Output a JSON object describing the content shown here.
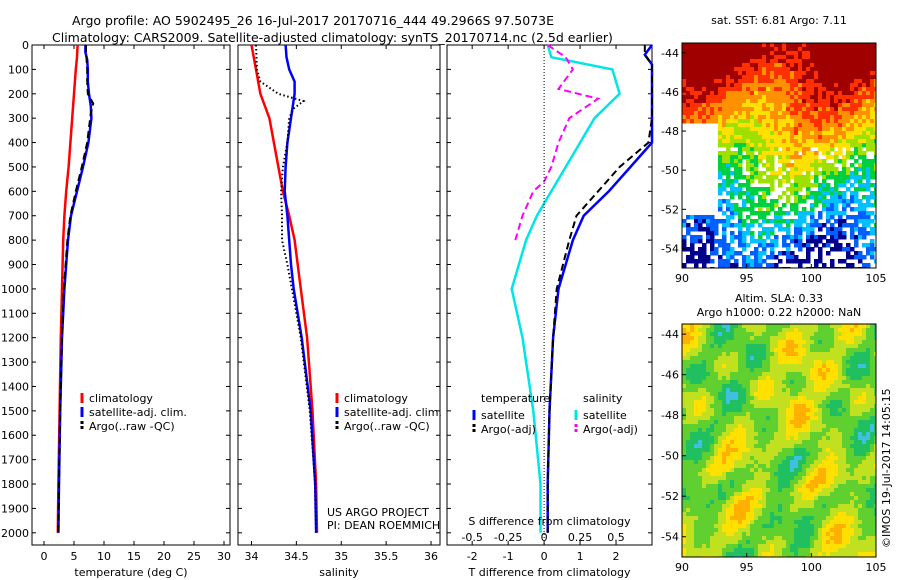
{
  "titles": {
    "line1": "Argo profile: AO 5902495_26 16-Jul-2017 20170716_444 49.2966S 97.5073E",
    "line2": "Climatology: CARS2009. Satellite-adjusted climatology: synTS_20170714.nc (2.5d earlier)"
  },
  "chart_data": [
    {
      "type": "line",
      "panel": "temperature",
      "xlabel": "temperature (deg C)",
      "ylabel": "",
      "xlim": [
        -2,
        31
      ],
      "ylim": [
        0,
        2050
      ],
      "y_inverted": true,
      "xticks": [
        0,
        5,
        10,
        15,
        20,
        25,
        30
      ],
      "yticks": [
        0,
        100,
        200,
        300,
        400,
        500,
        600,
        700,
        800,
        900,
        1000,
        1100,
        1200,
        1300,
        1400,
        1500,
        1600,
        1700,
        1800,
        1900,
        2000
      ],
      "legend": [
        "climatology",
        "satellite-adj. clim.",
        "Argo(..raw -QC)"
      ],
      "series": [
        {
          "name": "climatology",
          "color": "#ff0000",
          "style": "solid",
          "depth": [
            0,
            50,
            100,
            200,
            300,
            400,
            500,
            600,
            700,
            800,
            1000,
            1200,
            1500,
            1800,
            2000
          ],
          "values": [
            5.6,
            5.5,
            5.3,
            5.0,
            4.7,
            4.4,
            4.1,
            3.7,
            3.4,
            3.2,
            3.0,
            2.8,
            2.6,
            2.4,
            2.3
          ]
        },
        {
          "name": "satellite-adj. clim.",
          "color": "#0000ff",
          "style": "solid",
          "depth": [
            0,
            30,
            60,
            100,
            150,
            200,
            250,
            300,
            400,
            500,
            600,
            700,
            800,
            1000,
            1200,
            1500,
            1800,
            2000
          ],
          "values": [
            6.9,
            6.9,
            7.2,
            7.3,
            7.3,
            7.5,
            7.8,
            7.9,
            7.4,
            6.5,
            5.5,
            4.5,
            4.0,
            3.4,
            3.0,
            2.7,
            2.5,
            2.4
          ]
        },
        {
          "name": "Argo(..raw -QC)",
          "color": "#000000",
          "style": "dashed",
          "depth": [
            0,
            30,
            60,
            100,
            150,
            200,
            240,
            280,
            320,
            400,
            500,
            600,
            700,
            800,
            1000,
            1200,
            1500,
            1800,
            2000
          ],
          "values": [
            7.0,
            7.0,
            7.1,
            7.2,
            7.2,
            7.3,
            8.2,
            7.8,
            7.6,
            7.2,
            6.3,
            5.3,
            4.4,
            3.9,
            3.3,
            3.0,
            2.7,
            2.5,
            2.4
          ]
        }
      ]
    },
    {
      "type": "line",
      "panel": "salinity",
      "xlabel": "salinity",
      "ylabel": "",
      "xlim": [
        33.85,
        36.1
      ],
      "ylim": [
        0,
        2050
      ],
      "y_inverted": true,
      "xticks": [
        34,
        34.5,
        35,
        35.5,
        36
      ],
      "legend": [
        "climatology",
        "satellite-adj. clim.",
        "Argo(..raw -QC)"
      ],
      "series": [
        {
          "name": "climatology",
          "color": "#ff0000",
          "style": "solid",
          "depth": [
            0,
            100,
            200,
            250,
            300,
            400,
            500,
            600,
            700,
            800,
            1000,
            1200,
            1500,
            1800,
            2000
          ],
          "values": [
            34.0,
            34.05,
            34.1,
            34.15,
            34.2,
            34.25,
            34.3,
            34.35,
            34.42,
            34.48,
            34.55,
            34.62,
            34.68,
            34.72,
            34.73
          ]
        },
        {
          "name": "satellite-adj. clim.",
          "color": "#0000ff",
          "style": "solid",
          "depth": [
            0,
            50,
            100,
            150,
            200,
            300,
            400,
            500,
            600,
            700,
            800,
            900,
            1000,
            1200,
            1500,
            1800,
            2000
          ],
          "values": [
            34.38,
            34.39,
            34.42,
            34.48,
            34.48,
            34.44,
            34.4,
            34.38,
            34.37,
            34.4,
            34.42,
            34.44,
            34.47,
            34.56,
            34.66,
            34.71,
            34.72
          ]
        },
        {
          "name": "Argo(..raw -QC)",
          "color": "#000000",
          "style": "dotted",
          "depth": [
            0,
            100,
            150,
            200,
            230,
            260,
            300,
            400,
            500,
            600,
            700,
            800,
            900,
            1000,
            1200,
            1500,
            1800,
            2000
          ],
          "values": [
            34.05,
            34.06,
            34.1,
            34.3,
            34.58,
            34.47,
            34.42,
            34.4,
            34.35,
            34.33,
            34.34,
            34.34,
            34.4,
            34.45,
            34.55,
            34.65,
            34.71,
            34.72
          ]
        }
      ]
    },
    {
      "type": "line",
      "panel": "difference",
      "xlabel": "T difference from climatology",
      "xlabel2": "S difference from climatology",
      "xlim": [
        -2.7,
        3.0
      ],
      "ylim": [
        0,
        2050
      ],
      "y_inverted": true,
      "xticks": [
        -2,
        -1,
        0,
        1,
        2
      ],
      "xticks_s_labels": [
        "-0.5",
        "-0.25",
        "0",
        "0.25",
        "0.5"
      ],
      "xticks_s_positions": [
        -2,
        -1,
        0,
        1,
        2
      ],
      "legend_headers": [
        "temperature",
        "salinity"
      ],
      "legend": [
        "satellite",
        "Argo(-adj)",
        "satellite",
        "Argo(-adj)"
      ],
      "series": [
        {
          "name": "temperature satellite",
          "color": "#0000ff",
          "style": "solid",
          "depth": [
            0,
            40,
            80,
            200,
            300,
            400,
            500,
            600,
            700,
            800,
            1000,
            1200,
            1500,
            1800,
            2000
          ],
          "values": [
            3.0,
            2.8,
            3.0,
            3.0,
            3.0,
            3.0,
            2.4,
            1.8,
            1.1,
            0.8,
            0.4,
            0.25,
            0.15,
            0.1,
            0.1
          ]
        },
        {
          "name": "temperature Argo(-adj)",
          "color": "#000000",
          "style": "dashed",
          "depth": [
            0,
            40,
            80,
            200,
            300,
            400,
            500,
            600,
            700,
            800,
            1000,
            1200,
            1500,
            1800,
            2000
          ],
          "values": [
            2.8,
            2.8,
            3.0,
            3.0,
            3.0,
            2.9,
            2.1,
            1.5,
            0.9,
            0.7,
            0.35,
            0.25,
            0.15,
            0.1,
            0.1
          ]
        },
        {
          "name": "salinity satellite",
          "color": "#00e5e5",
          "style": "solid",
          "depth": [
            0,
            50,
            100,
            200,
            300,
            400,
            500,
            600,
            700,
            800,
            1000,
            1200,
            1500,
            1800,
            2000
          ],
          "values": [
            0.1,
            0.2,
            1.9,
            2.1,
            1.4,
            1.0,
            0.6,
            0.2,
            -0.2,
            -0.5,
            -0.9,
            -0.6,
            -0.3,
            -0.1,
            -0.1
          ]
        },
        {
          "name": "salinity Argo(-adj)",
          "color": "#ff00ff",
          "style": "dashed",
          "depth": [
            0,
            50,
            100,
            180,
            220,
            300,
            400,
            500,
            560,
            600,
            700,
            800
          ],
          "values": [
            0.1,
            0.6,
            0.8,
            0.4,
            1.5,
            0.7,
            0.4,
            0.2,
            0.0,
            -0.3,
            -0.6,
            -0.8
          ]
        }
      ]
    },
    {
      "type": "heatmap",
      "panel": "sat-sst-map",
      "title": "sat. SST: 6.81  Argo: 7.11",
      "xlim": [
        90,
        105
      ],
      "ylim": [
        -55,
        -43.5
      ],
      "xticks": [
        90,
        95,
        100,
        105
      ],
      "yticks": [
        -44,
        -46,
        -48,
        -50,
        -52,
        -54
      ],
      "colors": [
        "#00008b",
        "#0060ff",
        "#00c0ff",
        "#00d040",
        "#a0e000",
        "#ffe000",
        "#ff9000",
        "#ff3000",
        "#a00000"
      ]
    },
    {
      "type": "heatmap",
      "panel": "sla-map",
      "title": "Altim. SLA: 0.33",
      "subtitle": "Argo h1000: 0.22  h2000: NaN",
      "xlim": [
        90,
        105
      ],
      "ylim": [
        -55,
        -43.5
      ],
      "xticks": [
        90,
        95,
        100,
        105
      ],
      "yticks": [
        -44,
        -46,
        -48,
        -50,
        -52,
        -54
      ],
      "colors": [
        "#40c0e0",
        "#20c060",
        "#60d030",
        "#c0e020",
        "#ffe000",
        "#ffb000",
        "#ff8000"
      ]
    }
  ],
  "annotations": {
    "project_line1": "US ARGO PROJECT",
    "project_line2": "PI: DEAN ROEMMICH",
    "stamp": "©IMOS 19-Jul-2017 14:05:15"
  }
}
